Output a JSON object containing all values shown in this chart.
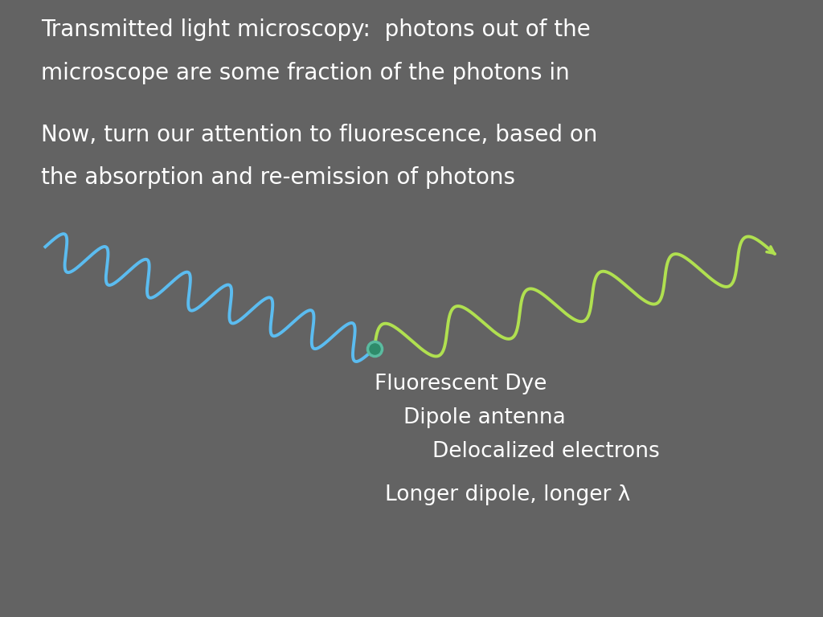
{
  "background_color": "#636363",
  "text_color": "#ffffff",
  "title_line1": "Transmitted light microscopy:  photons out of the",
  "title_line2": "microscope are some fraction of the photons in",
  "subtitle_line1": "Now, turn our attention to fluorescence, based on",
  "subtitle_line2": "the absorption and re-emission of photons",
  "blue_wave_color": "#5bbcf0",
  "green_wave_color": "#b0e050",
  "dot_color": "#2e8b6a",
  "dot_edge_color": "#5abba0",
  "label1": "Fluorescent Dye",
  "label2": "Dipole antenna",
  "label3": "Delocalized electrons",
  "label4": "Longer dipole, longer λ",
  "font_size_title": 20,
  "font_size_labels": 19,
  "wave_linewidth": 2.8
}
